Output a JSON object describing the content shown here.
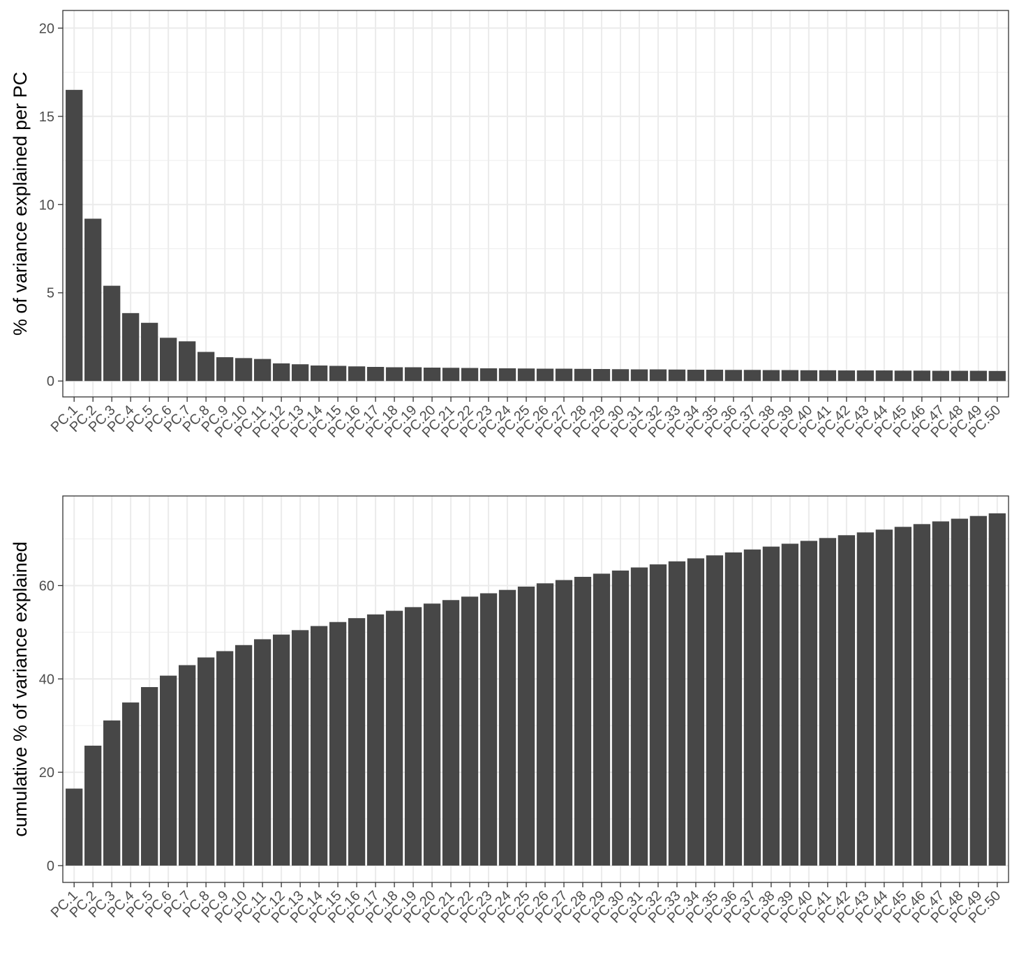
{
  "chart_data": [
    {
      "type": "bar",
      "title": "",
      "xlabel": "",
      "ylabel": "% of variance explained per PC",
      "ylim": [
        -0.9,
        21
      ],
      "yticks": [
        0,
        5,
        10,
        15,
        20
      ],
      "grid": true,
      "bar_color": "#474747",
      "categories": [
        "PC.1",
        "PC.2",
        "PC.3",
        "PC.4",
        "PC.5",
        "PC.6",
        "PC.7",
        "PC.8",
        "PC.9",
        "PC.10",
        "PC.11",
        "PC.12",
        "PC.13",
        "PC.14",
        "PC.15",
        "PC.16",
        "PC.17",
        "PC.18",
        "PC.19",
        "PC.20",
        "PC.21",
        "PC.22",
        "PC.23",
        "PC.24",
        "PC.25",
        "PC.26",
        "PC.27",
        "PC.28",
        "PC.29",
        "PC.30",
        "PC.31",
        "PC.32",
        "PC.33",
        "PC.34",
        "PC.35",
        "PC.36",
        "PC.37",
        "PC.38",
        "PC.39",
        "PC.40",
        "PC.41",
        "PC.42",
        "PC.43",
        "PC.44",
        "PC.45",
        "PC.46",
        "PC.47",
        "PC.48",
        "PC.49",
        "PC.50"
      ],
      "values": [
        16.5,
        9.2,
        5.4,
        3.85,
        3.3,
        2.45,
        2.25,
        1.65,
        1.35,
        1.3,
        1.25,
        1.0,
        0.95,
        0.88,
        0.86,
        0.83,
        0.8,
        0.78,
        0.78,
        0.76,
        0.75,
        0.74,
        0.72,
        0.72,
        0.71,
        0.7,
        0.7,
        0.69,
        0.68,
        0.67,
        0.66,
        0.66,
        0.65,
        0.64,
        0.64,
        0.63,
        0.63,
        0.62,
        0.62,
        0.61,
        0.61,
        0.6,
        0.6,
        0.6,
        0.59,
        0.59,
        0.58,
        0.58,
        0.58,
        0.57
      ]
    },
    {
      "type": "bar",
      "title": "",
      "xlabel": "",
      "ylabel": "cumulative % of variance explained",
      "ylim": [
        -3.6,
        79.2
      ],
      "yticks": [
        0,
        20,
        40,
        60
      ],
      "grid": true,
      "bar_color": "#474747",
      "categories": [
        "PC.1",
        "PC.2",
        "PC.3",
        "PC.4",
        "PC.5",
        "PC.6",
        "PC.7",
        "PC.8",
        "PC.9",
        "PC.10",
        "PC.11",
        "PC.12",
        "PC.13",
        "PC.14",
        "PC.15",
        "PC.16",
        "PC.17",
        "PC.18",
        "PC.19",
        "PC.20",
        "PC.21",
        "PC.22",
        "PC.23",
        "PC.24",
        "PC.25",
        "PC.26",
        "PC.27",
        "PC.28",
        "PC.29",
        "PC.30",
        "PC.31",
        "PC.32",
        "PC.33",
        "PC.34",
        "PC.35",
        "PC.36",
        "PC.37",
        "PC.38",
        "PC.39",
        "PC.40",
        "PC.41",
        "PC.42",
        "PC.43",
        "PC.44",
        "PC.45",
        "PC.46",
        "PC.47",
        "PC.48",
        "PC.49",
        "PC.50"
      ],
      "values": [
        16.5,
        25.7,
        31.1,
        34.95,
        38.25,
        40.7,
        42.95,
        44.6,
        45.95,
        47.25,
        48.5,
        49.5,
        50.45,
        51.33,
        52.19,
        53.02,
        53.82,
        54.6,
        55.38,
        56.14,
        56.89,
        57.63,
        58.35,
        59.07,
        59.78,
        60.48,
        61.18,
        61.87,
        62.55,
        63.22,
        63.88,
        64.54,
        65.19,
        65.83,
        66.47,
        67.1,
        67.73,
        68.35,
        68.97,
        69.58,
        70.19,
        70.79,
        71.39,
        71.99,
        72.58,
        73.17,
        73.75,
        74.33,
        74.91,
        75.48
      ]
    }
  ]
}
